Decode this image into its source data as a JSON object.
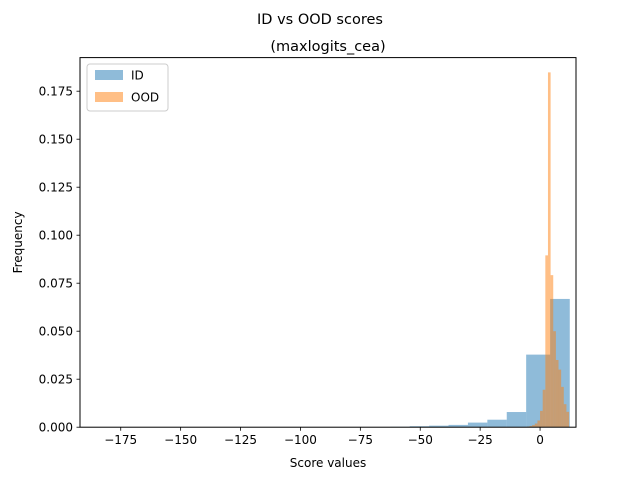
{
  "figure": {
    "suptitle": "ID vs OOD scores",
    "title": "(maxlogits_cea)"
  },
  "chart_data": {
    "type": "histogram",
    "title": "(maxlogits_cea)",
    "suptitle": "ID vs OOD scores",
    "xlabel": "Score values",
    "ylabel": "Frequency",
    "xlim": [
      -192,
      15
    ],
    "ylim": [
      0,
      0.1925
    ],
    "xticks": [
      -175,
      -150,
      -125,
      -100,
      -75,
      -50,
      -25,
      0
    ],
    "xtick_labels": [
      "−175",
      "−150",
      "−125",
      "−100",
      "−75",
      "−50",
      "−25",
      "0"
    ],
    "yticks": [
      0.0,
      0.025,
      0.05,
      0.075,
      0.1,
      0.125,
      0.15,
      0.175
    ],
    "ytick_labels": [
      "0.000",
      "0.025",
      "0.050",
      "0.075",
      "0.100",
      "0.125",
      "0.150",
      "0.175"
    ],
    "grid": false,
    "legend": {
      "position": "upper left",
      "entries": [
        "ID",
        "OOD"
      ]
    },
    "series": [
      {
        "name": "ID",
        "color": "#1f77b4",
        "alpha": 0.5,
        "bins": [
          [
            -184.0,
            -175.9,
            0.0
          ],
          [
            -175.9,
            -167.8,
            0.0
          ],
          [
            -167.8,
            -159.7,
            0.0
          ],
          [
            -159.7,
            -151.6,
            0.0
          ],
          [
            -151.6,
            -143.5,
            0.0
          ],
          [
            -143.5,
            -135.4,
            0.0
          ],
          [
            -135.4,
            -127.3,
            0.0
          ],
          [
            -127.3,
            -119.2,
            0.0
          ],
          [
            -119.2,
            -111.1,
            0.0
          ],
          [
            -111.1,
            -103.0,
            0.0
          ],
          [
            -103.0,
            -94.9,
            0.0
          ],
          [
            -94.9,
            -86.8,
            0.0
          ],
          [
            -86.8,
            -78.7,
            0.0
          ],
          [
            -78.7,
            -70.6,
            0.0
          ],
          [
            -70.6,
            -62.5,
            0.0
          ],
          [
            -62.5,
            -54.4,
            0.0002
          ],
          [
            -54.4,
            -46.3,
            0.0005
          ],
          [
            -46.3,
            -38.2,
            0.0008
          ],
          [
            -38.2,
            -30.1,
            0.0012
          ],
          [
            -30.1,
            -22.0,
            0.0024
          ],
          [
            -22.0,
            -13.9,
            0.0039
          ],
          [
            -13.9,
            -5.8,
            0.0079
          ],
          [
            -5.8,
            2.3,
            0.0378
          ],
          [
            2.3,
            4.2,
            0.0378
          ],
          [
            4.2,
            12.4,
            0.0668
          ]
        ]
      },
      {
        "name": "OOD",
        "color": "#ff7f0e",
        "alpha": 0.5,
        "bins": [
          [
            -5.5,
            -4.4,
            0.0003
          ],
          [
            -4.4,
            -3.3,
            0.0006
          ],
          [
            -3.3,
            -2.2,
            0.0011
          ],
          [
            -2.2,
            -1.1,
            0.0019
          ],
          [
            -1.1,
            0.0,
            0.0035
          ],
          [
            0.0,
            1.1,
            0.0085
          ],
          [
            1.1,
            2.2,
            0.0195
          ],
          [
            2.2,
            3.3,
            0.0895
          ],
          [
            3.3,
            4.4,
            0.1848
          ],
          [
            4.4,
            5.5,
            0.0792
          ],
          [
            5.5,
            6.6,
            0.05
          ],
          [
            6.6,
            7.7,
            0.035
          ],
          [
            7.7,
            8.8,
            0.03
          ],
          [
            8.8,
            9.9,
            0.021
          ],
          [
            9.9,
            11.0,
            0.012
          ],
          [
            11.0,
            12.1,
            0.008
          ]
        ]
      }
    ]
  }
}
